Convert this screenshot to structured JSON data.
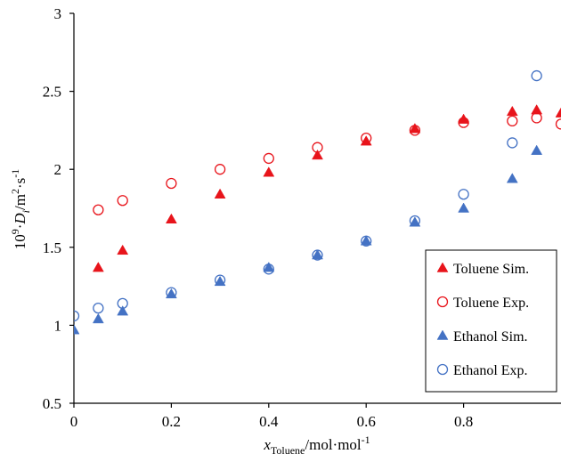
{
  "chart_data": {
    "type": "scatter",
    "title": "",
    "xlabel": {
      "var": "x",
      "sub": "Toluene",
      "unit": "/mol·mol",
      "unit_sup": "-1"
    },
    "ylabel": {
      "pre_num": "10",
      "pre_sup": "9",
      "dot": "·",
      "var": "D",
      "sub": "i",
      "unit1": "/m",
      "unit1_sup": "2",
      "unit2": "·s",
      "unit2_sup": "-1"
    },
    "xlim": [
      0,
      1
    ],
    "ylim": [
      0.5,
      3
    ],
    "xticks": [
      "0",
      "0.2",
      "0.4",
      "0.6",
      "0.8"
    ],
    "yticks": [
      "0.5",
      "1",
      "1.5",
      "2",
      "2.5",
      "3"
    ],
    "grid": false,
    "legend_position": "bottom-right",
    "series": [
      {
        "name": "Toluene Sim.",
        "marker": "triangle-filled",
        "color": "#e8141b",
        "x": [
          0.05,
          0.1,
          0.2,
          0.3,
          0.4,
          0.5,
          0.6,
          0.7,
          0.8,
          0.9,
          0.95,
          1.0
        ],
        "y": [
          1.37,
          1.48,
          1.68,
          1.84,
          1.98,
          2.09,
          2.18,
          2.26,
          2.32,
          2.37,
          2.38,
          2.36
        ]
      },
      {
        "name": "Toluene Exp.",
        "marker": "circle-open",
        "color": "#e8141b",
        "x": [
          0.05,
          0.1,
          0.2,
          0.3,
          0.4,
          0.5,
          0.6,
          0.7,
          0.8,
          0.9,
          0.95,
          1.0
        ],
        "y": [
          1.74,
          1.8,
          1.91,
          2.0,
          2.07,
          2.14,
          2.2,
          2.25,
          2.3,
          2.31,
          2.33,
          2.29
        ]
      },
      {
        "name": "Ethanol Sim.",
        "marker": "triangle-filled",
        "color": "#4472c4",
        "x": [
          0,
          0.05,
          0.1,
          0.2,
          0.3,
          0.4,
          0.5,
          0.6,
          0.7,
          0.8,
          0.9,
          0.95
        ],
        "y": [
          0.97,
          1.04,
          1.09,
          1.2,
          1.28,
          1.37,
          1.45,
          1.54,
          1.66,
          1.75,
          1.94,
          2.12
        ]
      },
      {
        "name": "Ethanol Exp.",
        "marker": "circle-open",
        "color": "#4472c4",
        "x": [
          0,
          0.05,
          0.1,
          0.2,
          0.3,
          0.4,
          0.5,
          0.6,
          0.7,
          0.8,
          0.9,
          0.95
        ],
        "y": [
          1.06,
          1.11,
          1.14,
          1.21,
          1.29,
          1.36,
          1.45,
          1.54,
          1.67,
          1.84,
          2.17,
          2.6
        ]
      }
    ]
  }
}
